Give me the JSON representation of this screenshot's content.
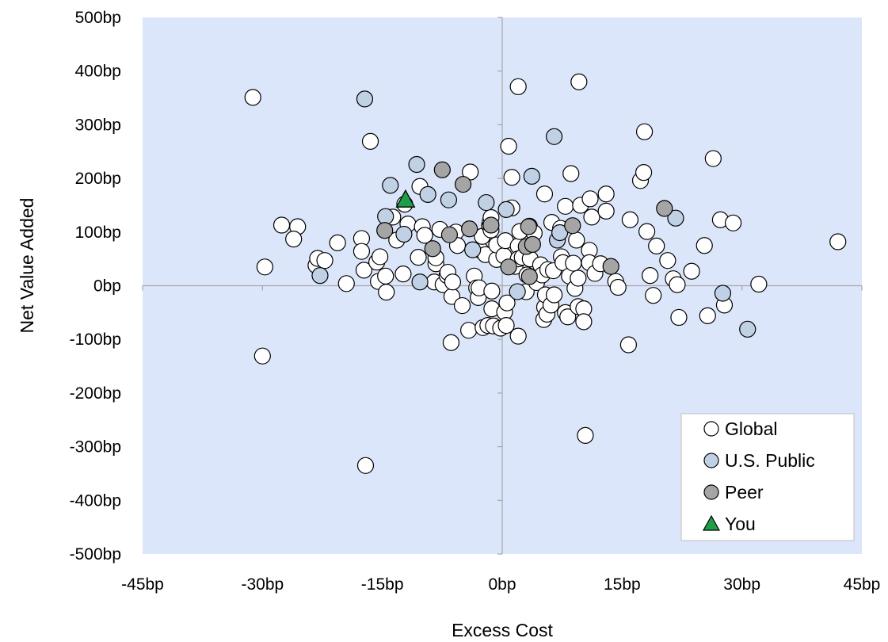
{
  "chart_data": {
    "type": "scatter",
    "title": "",
    "xlabel": "Excess Cost",
    "ylabel": "Net Value Added",
    "xlim": [
      -45,
      45
    ],
    "ylim": [
      -500,
      500
    ],
    "x_ticks": [
      {
        "value": -45,
        "label": "-45bp"
      },
      {
        "value": -30,
        "label": "-30bp"
      },
      {
        "value": -15,
        "label": "-15bp"
      },
      {
        "value": 0,
        "label": "0bp"
      },
      {
        "value": 15,
        "label": "15bp"
      },
      {
        "value": 30,
        "label": "30bp"
      },
      {
        "value": 45,
        "label": "45bp"
      }
    ],
    "y_ticks": [
      {
        "value": 500,
        "label": "500bp"
      },
      {
        "value": 400,
        "label": "400bp"
      },
      {
        "value": 300,
        "label": "300bp"
      },
      {
        "value": 200,
        "label": "200bp"
      },
      {
        "value": 100,
        "label": "100bp"
      },
      {
        "value": 0,
        "label": "0bp"
      },
      {
        "value": -100,
        "label": "-100bp"
      },
      {
        "value": -200,
        "label": "-200bp"
      },
      {
        "value": -300,
        "label": "-300bp"
      },
      {
        "value": -400,
        "label": "-400bp"
      },
      {
        "value": -500,
        "label": "-500bp"
      }
    ],
    "grid": false,
    "legend_position": "bottom-right",
    "plot_background": "#dce6fa",
    "series": [
      {
        "name": "Global",
        "marker": "circle",
        "color": "#ffffff",
        "points": [
          [
            -31.2,
            351
          ],
          [
            -30.0,
            -131
          ],
          [
            -29.7,
            35
          ],
          [
            -27.6,
            113
          ],
          [
            -25.6,
            110
          ],
          [
            -26.1,
            87
          ],
          [
            -23.3,
            38
          ],
          [
            -23.1,
            51
          ],
          [
            -22.2,
            47
          ],
          [
            -20.6,
            80
          ],
          [
            -19.5,
            4
          ],
          [
            -17.6,
            88
          ],
          [
            -17.6,
            64
          ],
          [
            -17.3,
            29
          ],
          [
            -17.1,
            -335
          ],
          [
            -16.5,
            269
          ],
          [
            -15.7,
            44
          ],
          [
            -15.3,
            54
          ],
          [
            -15.5,
            8
          ],
          [
            -14.6,
            18
          ],
          [
            -14.5,
            -12
          ],
          [
            -13.7,
            128
          ],
          [
            -13.2,
            85
          ],
          [
            -12.4,
            22
          ],
          [
            -12.2,
            152
          ],
          [
            -11.8,
            115
          ],
          [
            -10.5,
            53
          ],
          [
            -10.3,
            185
          ],
          [
            -10.0,
            110
          ],
          [
            -9.7,
            94
          ],
          [
            -8.5,
            7
          ],
          [
            -8.3,
            41
          ],
          [
            -8.3,
            52
          ],
          [
            -7.8,
            105
          ],
          [
            -7.4,
            2
          ],
          [
            -6.9,
            19
          ],
          [
            -6.8,
            25
          ],
          [
            -6.4,
            -106
          ],
          [
            -6.3,
            -20
          ],
          [
            -6.2,
            7
          ],
          [
            -5.8,
            100
          ],
          [
            -5.6,
            75
          ],
          [
            -5.0,
            -37
          ],
          [
            -4.2,
            -83
          ],
          [
            -4.0,
            212
          ],
          [
            -3.5,
            18
          ],
          [
            -3.2,
            -4
          ],
          [
            -3.0,
            -22
          ],
          [
            -2.9,
            -4
          ],
          [
            -2.7,
            66
          ],
          [
            -2.5,
            92
          ],
          [
            -2.4,
            -78
          ],
          [
            -2.1,
            58
          ],
          [
            -1.8,
            -74
          ],
          [
            -1.6,
            112
          ],
          [
            -1.5,
            119
          ],
          [
            -1.4,
            127
          ],
          [
            -1.4,
            104
          ],
          [
            -1.3,
            -10
          ],
          [
            -1.3,
            -43
          ],
          [
            -1.1,
            -75
          ],
          [
            -0.7,
            49
          ],
          [
            -0.7,
            76
          ],
          [
            -0.2,
            -79
          ],
          [
            0.2,
            56
          ],
          [
            0.3,
            -49
          ],
          [
            0.4,
            84
          ],
          [
            0.5,
            -74
          ],
          [
            0.6,
            -32
          ],
          [
            0.8,
            260
          ],
          [
            1.2,
            145
          ],
          [
            1.2,
            202
          ],
          [
            1.6,
            36
          ],
          [
            2.0,
            74
          ],
          [
            2.0,
            50
          ],
          [
            2.0,
            -94
          ],
          [
            2.0,
            371
          ],
          [
            2.2,
            101
          ],
          [
            2.5,
            53
          ],
          [
            3.0,
            -11
          ],
          [
            3.1,
            20
          ],
          [
            3.4,
            111
          ],
          [
            3.5,
            50
          ],
          [
            4.0,
            98
          ],
          [
            4.3,
            6
          ],
          [
            4.8,
            39
          ],
          [
            5.0,
            20
          ],
          [
            5.2,
            -63
          ],
          [
            5.3,
            -40
          ],
          [
            5.3,
            171
          ],
          [
            5.4,
            -17
          ],
          [
            5.6,
            -53
          ],
          [
            5.7,
            30
          ],
          [
            6.1,
            -36
          ],
          [
            6.2,
            118
          ],
          [
            6.4,
            28
          ],
          [
            6.5,
            -17
          ],
          [
            7.3,
            107
          ],
          [
            7.4,
            54
          ],
          [
            7.6,
            43
          ],
          [
            7.9,
            -50
          ],
          [
            7.9,
            148
          ],
          [
            8.2,
            -58
          ],
          [
            8.4,
            18
          ],
          [
            8.6,
            209
          ],
          [
            8.9,
            42
          ],
          [
            9.1,
            -5
          ],
          [
            9.3,
            85
          ],
          [
            9.5,
            14
          ],
          [
            9.5,
            -39
          ],
          [
            9.6,
            380
          ],
          [
            9.8,
            150
          ],
          [
            10.2,
            -43
          ],
          [
            10.2,
            -67
          ],
          [
            10.4,
            -279
          ],
          [
            10.9,
            66
          ],
          [
            10.9,
            43
          ],
          [
            11.0,
            162
          ],
          [
            11.2,
            128
          ],
          [
            11.6,
            23
          ],
          [
            12.3,
            41
          ],
          [
            13.0,
            171
          ],
          [
            13.0,
            139
          ],
          [
            14.2,
            8
          ],
          [
            14.5,
            -3
          ],
          [
            15.8,
            -110
          ],
          [
            16.0,
            123
          ],
          [
            17.3,
            196
          ],
          [
            17.7,
            211
          ],
          [
            17.8,
            287
          ],
          [
            18.1,
            101
          ],
          [
            18.5,
            19
          ],
          [
            18.9,
            -18
          ],
          [
            19.3,
            74
          ],
          [
            20.7,
            47
          ],
          [
            21.4,
            13
          ],
          [
            21.9,
            2
          ],
          [
            22.1,
            -59
          ],
          [
            23.7,
            27
          ],
          [
            25.3,
            75
          ],
          [
            25.7,
            -56
          ],
          [
            26.4,
            237
          ],
          [
            27.3,
            123
          ],
          [
            27.8,
            -36
          ],
          [
            28.9,
            117
          ],
          [
            32.1,
            3
          ],
          [
            42.0,
            82
          ]
        ]
      },
      {
        "name": "U.S. Public",
        "marker": "circle",
        "color": "#c0d1e6",
        "points": [
          [
            -22.8,
            19
          ],
          [
            -17.2,
            348
          ],
          [
            -14.6,
            129
          ],
          [
            -14.0,
            187
          ],
          [
            -12.3,
            96
          ],
          [
            -10.7,
            226
          ],
          [
            -10.3,
            7
          ],
          [
            -9.3,
            170
          ],
          [
            -6.7,
            160
          ],
          [
            -3.7,
            67
          ],
          [
            -2.0,
            155
          ],
          [
            0.5,
            142
          ],
          [
            1.9,
            -11
          ],
          [
            3.7,
            204
          ],
          [
            6.5,
            278
          ],
          [
            6.9,
            85
          ],
          [
            7.2,
            99
          ],
          [
            21.7,
            126
          ],
          [
            27.6,
            -14
          ],
          [
            30.7,
            -81
          ]
        ]
      },
      {
        "name": "Peer",
        "marker": "circle",
        "color": "#a5a5a5",
        "points": [
          [
            -14.7,
            103
          ],
          [
            -8.7,
            69
          ],
          [
            -7.5,
            216
          ],
          [
            -6.6,
            95
          ],
          [
            -4.9,
            189
          ],
          [
            -4.1,
            106
          ],
          [
            -1.4,
            113
          ],
          [
            0.8,
            35
          ],
          [
            3.0,
            73
          ],
          [
            3.3,
            110
          ],
          [
            3.4,
            17
          ],
          [
            3.8,
            77
          ],
          [
            8.8,
            112
          ],
          [
            13.6,
            36
          ],
          [
            20.3,
            144
          ]
        ]
      },
      {
        "name": "You",
        "marker": "triangle",
        "color": "#1f9e4a",
        "points": [
          [
            -12.1,
            160
          ]
        ]
      }
    ]
  }
}
